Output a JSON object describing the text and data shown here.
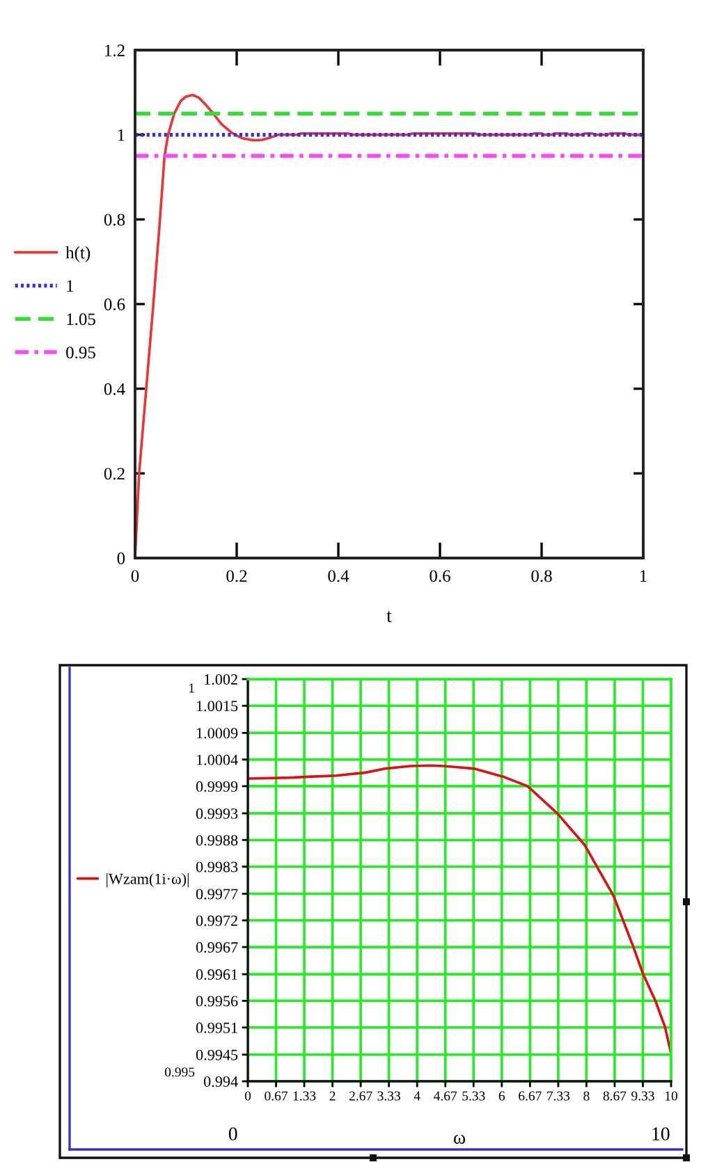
{
  "chart_data": [
    {
      "type": "line",
      "xlabel": "t",
      "series": [
        {
          "name": "h(t)",
          "color": "#ee3333",
          "line_style": "solid",
          "x": [
            0,
            0.004,
            0.008,
            0.022,
            0.036,
            0.049,
            0.058,
            0.065,
            0.077,
            0.09,
            0.1,
            0.113,
            0.125,
            0.14,
            0.154,
            0.17,
            0.19,
            0.21,
            0.232,
            0.25,
            0.265,
            0.282,
            0.32,
            0.325,
            0.42,
            0.425,
            0.54,
            0.545,
            0.67,
            0.675,
            0.78,
            0.785,
            0.8,
            0.805,
            0.82,
            0.825,
            0.85,
            0.855,
            0.88,
            0.885,
            0.9,
            0.905,
            0.93,
            0.935,
            0.965,
            0.97,
            1
          ],
          "values": [
            0,
            0.1,
            0.2,
            0.4,
            0.6,
            0.8,
            0.95,
            1.0,
            1.05,
            1.08,
            1.09,
            1.094,
            1.088,
            1.07,
            1.05,
            1.025,
            1.005,
            0.992,
            0.987,
            0.988,
            0.993,
            1.0,
            1.0,
            1.003,
            1.003,
            1.0,
            1.0,
            1.003,
            1.003,
            1.0,
            1.0,
            1.003,
            1.003,
            1.0,
            1.0,
            1.003,
            1.003,
            1.0,
            1.0,
            1.003,
            1.003,
            1.0,
            1.0,
            1.003,
            1.003,
            1.0,
            1.0
          ]
        },
        {
          "name": "1",
          "color": "#3333dd",
          "line_style": "dotted",
          "x": [
            0,
            1
          ],
          "values": [
            1,
            1
          ]
        },
        {
          "name": "1.05",
          "color": "#33dd33",
          "line_style": "dashed",
          "x": [
            0,
            1
          ],
          "values": [
            1.05,
            1.05
          ]
        },
        {
          "name": "0.95",
          "color": "#ff44ff",
          "line_style": "dashdot",
          "x": [
            0,
            1
          ],
          "values": [
            0.95,
            0.95
          ]
        }
      ],
      "xlim": [
        0,
        1
      ],
      "ylim": [
        0,
        1.2
      ],
      "xticks": [
        0,
        0.2,
        0.4,
        0.6,
        0.8,
        1
      ],
      "yticks": [
        0,
        0.2,
        0.4,
        0.6,
        0.8,
        1,
        1.2
      ],
      "grid": false,
      "legend": "left"
    },
    {
      "type": "line",
      "xlabel": "ω",
      "series": [
        {
          "name": "|Wzam(1i·ω)|",
          "color": "#e01010",
          "line_style": "solid",
          "x": [
            0,
            1,
            1.5,
            2.09,
            2.78,
            3.25,
            3.83,
            4.3,
            4.64,
            5.34,
            6.03,
            6.61,
            7.31,
            7.95,
            8.64,
            9.11,
            9.34,
            9.63,
            9.86,
            10
          ],
          "values": [
            1.00002,
            1.00004,
            1.00006,
            1.00008,
            1.00014,
            1.00022,
            1.00027,
            1.00028,
            1.00027,
            1.00022,
            1.00006,
            0.99987,
            0.99933,
            0.99871,
            0.99769,
            0.99667,
            0.99613,
            0.9956,
            0.99507,
            0.99455
          ]
        }
      ],
      "xlim": [
        0,
        10
      ],
      "ylim": [
        0.994,
        1.002
      ],
      "xticks": [
        0,
        {
          "value": 0.6667,
          "label": "0.67"
        },
        {
          "value": 1.3333,
          "label": "1.33"
        },
        2,
        {
          "value": 2.6667,
          "label": "2.67"
        },
        {
          "value": 3.3333,
          "label": "3.33"
        },
        4,
        {
          "value": 4.6667,
          "label": "4.67"
        },
        {
          "value": 5.3333,
          "label": "5.33"
        },
        6,
        {
          "value": 6.6667,
          "label": "6.67"
        },
        {
          "value": 7.3333,
          "label": "7.33"
        },
        8,
        {
          "value": 8.6667,
          "label": "8.67"
        },
        {
          "value": 9.3333,
          "label": "9.33"
        },
        10
      ],
      "yticks": [
        0.994,
        {
          "value": 0.99453,
          "label": "0.9945"
        },
        {
          "value": 0.99507,
          "label": "0.9951"
        },
        0.9956,
        {
          "value": 0.99613,
          "label": "0.9961"
        },
        {
          "value": 0.99667,
          "label": "0.9967"
        },
        0.9972,
        {
          "value": 0.99773,
          "label": "0.9977"
        },
        {
          "value": 0.99827,
          "label": "0.9983"
        },
        0.9988,
        {
          "value": 0.99933,
          "label": "0.9993"
        },
        {
          "value": 0.99987,
          "label": "0.9999"
        },
        1.0004,
        {
          "value": 1.00093,
          "label": "1.0009"
        },
        {
          "value": 1.00147,
          "label": "1.0015"
        },
        1.002
      ],
      "grid": true,
      "legend": "left",
      "annotations": [
        "1",
        "0.995",
        "0",
        "10"
      ]
    }
  ]
}
